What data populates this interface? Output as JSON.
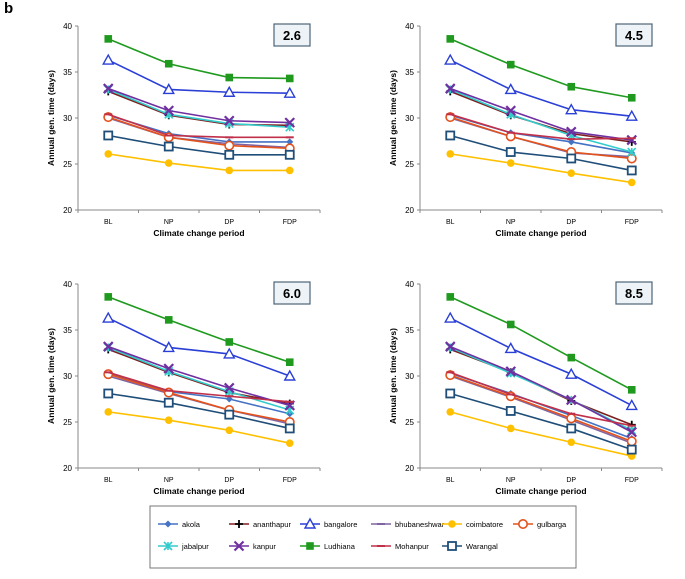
{
  "panel_label": "b",
  "legend": {
    "entries": [
      "akola",
      "ananthapur",
      "bangalore",
      "bhubaneshwar",
      "coimbatore",
      "gulbarga",
      "jabalpur",
      "kanpur",
      "Ludhiana",
      "Mohanpur",
      "Warangal"
    ]
  },
  "series_styles": {
    "akola": {
      "color": "#4472c4",
      "marker": "diamond"
    },
    "ananthapur": {
      "color": "#7f2020",
      "marker": "plus"
    },
    "bangalore": {
      "color": "#2a3fd6",
      "marker": "triangle"
    },
    "bhubaneshwar": {
      "color": "#8064a2",
      "marker": "dash"
    },
    "coimbatore": {
      "color": "#ffc000",
      "marker": "circle-filled"
    },
    "gulbarga": {
      "color": "#e3521c",
      "marker": "circle-open"
    },
    "jabalpur": {
      "color": "#33cccc",
      "marker": "x-star"
    },
    "kanpur": {
      "color": "#7030a0",
      "marker": "x"
    },
    "Ludhiana": {
      "color": "#1f9a1f",
      "marker": "square-filled"
    },
    "Mohanpur": {
      "color": "#c0304a",
      "marker": "dash"
    },
    "Warangal": {
      "color": "#1f4e79",
      "marker": "square-open"
    }
  },
  "chart_data": [
    {
      "type": "line",
      "title": "2.6",
      "xlabel": "Climate change period",
      "ylabel": "Annual gen. time (days)",
      "categories": [
        "BL",
        "NP",
        "DP",
        "FDP"
      ],
      "ylim": [
        20,
        40
      ],
      "yticks": [
        20,
        25,
        30,
        35,
        40
      ],
      "series": [
        {
          "name": "akola",
          "values": [
            30.3,
            28.3,
            27.4,
            27.4
          ]
        },
        {
          "name": "ananthapur",
          "values": [
            32.9,
            30.3,
            29.3,
            29.2
          ]
        },
        {
          "name": "bangalore",
          "values": [
            36.3,
            33.1,
            32.8,
            32.7
          ]
        },
        {
          "name": "bhubaneshwar",
          "values": [
            30.0,
            27.9,
            27.2,
            26.8
          ]
        },
        {
          "name": "coimbatore",
          "values": [
            26.1,
            25.1,
            24.3,
            24.3
          ]
        },
        {
          "name": "gulbarga",
          "values": [
            30.1,
            27.9,
            27.0,
            26.7
          ]
        },
        {
          "name": "jabalpur",
          "values": [
            33.1,
            30.4,
            29.4,
            29.0
          ]
        },
        {
          "name": "kanpur",
          "values": [
            33.2,
            30.8,
            29.7,
            29.5
          ]
        },
        {
          "name": "Ludhiana",
          "values": [
            38.6,
            35.9,
            34.4,
            34.3
          ]
        },
        {
          "name": "Mohanpur",
          "values": [
            30.4,
            28.1,
            27.9,
            27.9
          ]
        },
        {
          "name": "Warangal",
          "values": [
            28.1,
            26.9,
            26.0,
            26.0
          ]
        }
      ]
    },
    {
      "type": "line",
      "title": "4.5",
      "xlabel": "Climate change period",
      "ylabel": "Annual gen. time (days)",
      "categories": [
        "BL",
        "NP",
        "DP",
        "FDP"
      ],
      "ylim": [
        20,
        40
      ],
      "yticks": [
        20,
        25,
        30,
        35,
        40
      ],
      "series": [
        {
          "name": "akola",
          "values": [
            30.3,
            28.4,
            27.4,
            26.2
          ]
        },
        {
          "name": "ananthapur",
          "values": [
            32.9,
            30.3,
            28.3,
            27.4
          ]
        },
        {
          "name": "bangalore",
          "values": [
            36.3,
            33.1,
            30.9,
            30.2
          ]
        },
        {
          "name": "bhubaneshwar",
          "values": [
            30.0,
            28.0,
            26.2,
            25.8
          ]
        },
        {
          "name": "coimbatore",
          "values": [
            26.1,
            25.1,
            24.0,
            23.0
          ]
        },
        {
          "name": "gulbarga",
          "values": [
            30.1,
            28.0,
            26.3,
            25.6
          ]
        },
        {
          "name": "jabalpur",
          "values": [
            33.1,
            30.4,
            28.1,
            26.3
          ]
        },
        {
          "name": "kanpur",
          "values": [
            33.2,
            30.8,
            28.5,
            27.6
          ]
        },
        {
          "name": "Ludhiana",
          "values": [
            38.6,
            35.8,
            33.4,
            32.2
          ]
        },
        {
          "name": "Mohanpur",
          "values": [
            30.4,
            28.4,
            27.7,
            27.8
          ]
        },
        {
          "name": "Warangal",
          "values": [
            28.1,
            26.3,
            25.6,
            24.3
          ]
        }
      ]
    },
    {
      "type": "line",
      "title": "6.0",
      "xlabel": "Climate change period",
      "ylabel": "Annual gen. time (days)",
      "categories": [
        "BL",
        "NP",
        "DP",
        "FDP"
      ],
      "ylim": [
        20,
        40
      ],
      "yticks": [
        20,
        25,
        30,
        35,
        40
      ],
      "series": [
        {
          "name": "akola",
          "values": [
            30.3,
            28.3,
            27.5,
            25.9
          ]
        },
        {
          "name": "ananthapur",
          "values": [
            32.9,
            30.4,
            28.2,
            27.0
          ]
        },
        {
          "name": "bangalore",
          "values": [
            36.3,
            33.1,
            32.4,
            30.0
          ]
        },
        {
          "name": "bhubaneshwar",
          "values": [
            30.0,
            28.1,
            26.3,
            24.8
          ]
        },
        {
          "name": "coimbatore",
          "values": [
            26.1,
            25.2,
            24.1,
            22.7
          ]
        },
        {
          "name": "gulbarga",
          "values": [
            30.2,
            28.2,
            26.3,
            25.0
          ]
        },
        {
          "name": "jabalpur",
          "values": [
            33.1,
            30.5,
            28.3,
            26.3
          ]
        },
        {
          "name": "kanpur",
          "values": [
            33.2,
            30.8,
            28.7,
            26.8
          ]
        },
        {
          "name": "Ludhiana",
          "values": [
            38.6,
            36.1,
            33.7,
            31.5
          ]
        },
        {
          "name": "Mohanpur",
          "values": [
            30.4,
            28.4,
            27.8,
            27.2
          ]
        },
        {
          "name": "Warangal",
          "values": [
            28.1,
            27.1,
            25.8,
            24.3
          ]
        }
      ]
    },
    {
      "type": "line",
      "title": "8.5",
      "xlabel": "Climate change period",
      "ylabel": "Annual gen. time (days)",
      "categories": [
        "BL",
        "NP",
        "DP",
        "FDP"
      ],
      "ylim": [
        20,
        40
      ],
      "yticks": [
        20,
        25,
        30,
        35,
        40
      ],
      "series": [
        {
          "name": "akola",
          "values": [
            30.3,
            28.1,
            25.7,
            23.2
          ]
        },
        {
          "name": "ananthapur",
          "values": [
            32.9,
            30.4,
            27.3,
            24.7
          ]
        },
        {
          "name": "bangalore",
          "values": [
            36.3,
            33.0,
            30.2,
            26.8
          ]
        },
        {
          "name": "bhubaneshwar",
          "values": [
            30.0,
            27.7,
            25.2,
            22.7
          ]
        },
        {
          "name": "coimbatore",
          "values": [
            26.1,
            24.3,
            22.8,
            21.3
          ]
        },
        {
          "name": "gulbarga",
          "values": [
            30.1,
            27.8,
            25.4,
            22.9
          ]
        },
        {
          "name": "jabalpur",
          "values": [
            33.1,
            30.3,
            27.4,
            24.1
          ]
        },
        {
          "name": "kanpur",
          "values": [
            33.2,
            30.5,
            27.4,
            23.9
          ]
        },
        {
          "name": "Ludhiana",
          "values": [
            38.6,
            35.6,
            32.0,
            28.5
          ]
        },
        {
          "name": "Mohanpur",
          "values": [
            30.4,
            28.0,
            25.9,
            24.6
          ]
        },
        {
          "name": "Warangal",
          "values": [
            28.1,
            26.2,
            24.3,
            22.0
          ]
        }
      ]
    }
  ]
}
